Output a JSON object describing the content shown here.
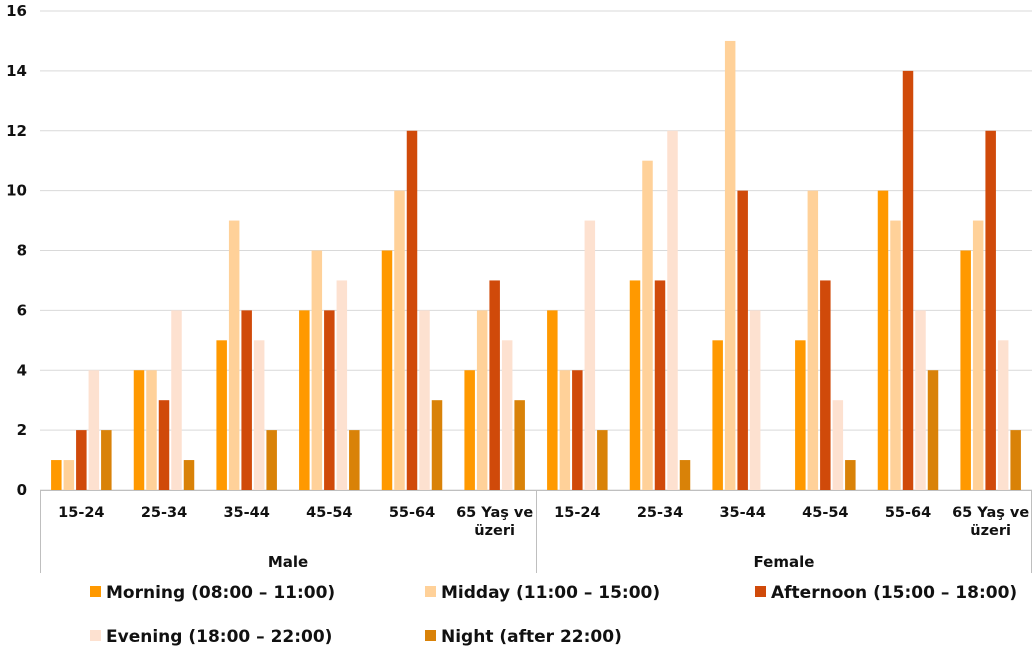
{
  "chart_data": {
    "type": "bar",
    "title": "",
    "xlabel": "",
    "ylabel": "",
    "ylim": [
      0,
      16
    ],
    "yticks": [
      "0",
      "2",
      "4",
      "6",
      "8",
      "10",
      "12",
      "14",
      "16"
    ],
    "grid": true,
    "legend_position": "bottom",
    "groups": [
      {
        "name": "Male",
        "categories": [
          "15-24",
          "25-34",
          "35-44",
          "45-54",
          "55-64",
          "65 Yaş ve üzeri"
        ]
      },
      {
        "name": "Female",
        "categories": [
          "15-24",
          "25-34",
          "35-44",
          "45-54",
          "55-64",
          "65 Yaş ve üzeri"
        ]
      }
    ],
    "series": [
      {
        "name": "Morning (08:00 – 11:00)",
        "color": "#FF9900",
        "values": [
          1,
          4,
          5,
          6,
          8,
          4,
          6,
          7,
          5,
          5,
          10,
          8
        ]
      },
      {
        "name": "Midday (11:00 – 15:00)",
        "color": "#FFD199",
        "values": [
          1,
          4,
          9,
          8,
          10,
          6,
          4,
          11,
          15,
          10,
          9,
          9
        ]
      },
      {
        "name": "Afternoon (15:00 – 18:00)",
        "color": "#D04A0A",
        "values": [
          2,
          3,
          6,
          6,
          12,
          7,
          4,
          7,
          10,
          7,
          14,
          12
        ]
      },
      {
        "name": "Evening (18:00 – 22:00)",
        "color": "#FDE1D0",
        "values": [
          4,
          6,
          5,
          7,
          6,
          5,
          9,
          12,
          6,
          3,
          6,
          5
        ]
      },
      {
        "name": "Night (after 22:00)",
        "color": "#D98208",
        "values": [
          2,
          1,
          2,
          2,
          3,
          3,
          2,
          1,
          0,
          1,
          4,
          2
        ]
      }
    ]
  }
}
